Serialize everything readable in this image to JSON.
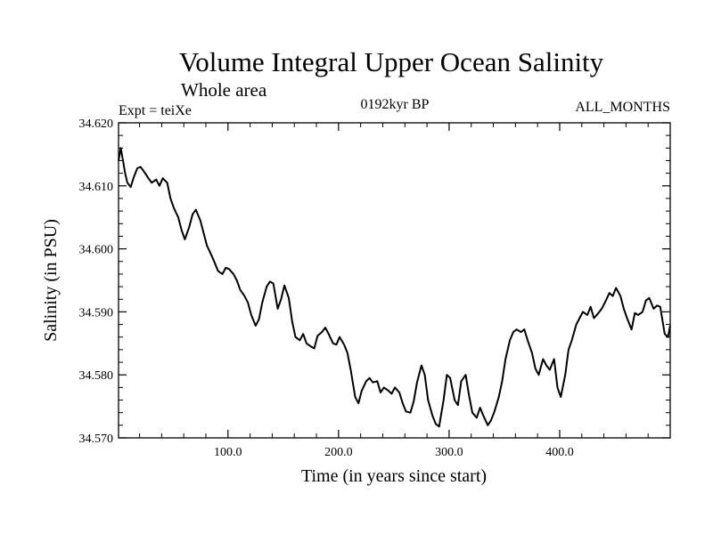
{
  "chart_data": {
    "type": "line",
    "title": "Volume Integral Upper Ocean Salinity",
    "subtitle": "Whole area",
    "annotations": {
      "left": "Expt = teiXe",
      "center": "0192kyr BP",
      "right": "ALL_MONTHS"
    },
    "xlabel": "Time (in years since start)",
    "ylabel": "Salinity (in PSU)",
    "xlim": [
      1,
      500
    ],
    "ylim": [
      34.57,
      34.62
    ],
    "x_ticks": [
      100,
      200,
      300,
      400
    ],
    "x_tick_labels": [
      "100.0",
      "200.0",
      "300.0",
      "400.0"
    ],
    "y_ticks": [
      34.57,
      34.58,
      34.59,
      34.6,
      34.61,
      34.62
    ],
    "y_tick_labels": [
      "34.570",
      "34.580",
      "34.590",
      "34.600",
      "34.610",
      "34.620"
    ],
    "grid": false,
    "legend": "none",
    "series_color": "#000000",
    "series": [
      {
        "x": [
          1,
          3,
          5,
          7,
          9,
          12,
          15,
          18,
          21,
          25,
          28,
          31,
          35,
          38,
          41,
          45,
          48,
          51,
          55,
          58,
          61,
          65,
          68,
          71,
          75,
          78,
          81,
          85,
          88,
          91,
          95,
          98,
          101,
          105,
          108,
          111,
          115,
          118,
          121,
          125,
          128,
          131,
          135,
          138,
          141,
          145,
          148,
          151,
          155,
          158,
          161,
          165,
          168,
          171,
          175,
          178,
          181,
          185,
          188,
          191,
          195,
          198,
          201,
          205,
          208,
          211,
          215,
          218,
          221,
          225,
          228,
          231,
          235,
          238,
          241,
          245,
          248,
          251,
          255,
          258,
          261,
          265,
          268,
          271,
          275,
          278,
          281,
          285,
          288,
          291,
          295,
          298,
          301,
          305,
          308,
          311,
          315,
          318,
          321,
          325,
          328,
          331,
          335,
          338,
          341,
          345,
          348,
          351,
          355,
          358,
          361,
          365,
          368,
          371,
          375,
          378,
          381,
          385,
          388,
          391,
          395,
          398,
          401,
          405,
          408,
          411,
          415,
          418,
          421,
          425,
          428,
          431,
          435,
          438,
          441,
          445,
          448,
          451,
          455,
          458,
          461,
          465,
          468,
          471,
          475,
          478,
          481,
          485,
          488,
          491,
          495,
          498,
          500
        ],
        "y": [
          34.614,
          34.616,
          34.614,
          34.612,
          34.6105,
          34.6098,
          34.6115,
          34.6128,
          34.613,
          34.612,
          34.6112,
          34.6105,
          34.611,
          34.61,
          34.6112,
          34.6105,
          34.608,
          34.6065,
          34.605,
          34.603,
          34.6015,
          34.6035,
          34.6055,
          34.6062,
          34.6045,
          34.6025,
          34.6005,
          34.599,
          34.5978,
          34.5965,
          34.596,
          34.597,
          34.5968,
          34.596,
          34.595,
          34.5935,
          34.5925,
          34.5915,
          34.5895,
          34.5878,
          34.5888,
          34.5915,
          34.594,
          34.5948,
          34.5945,
          34.5905,
          34.592,
          34.5942,
          34.5922,
          34.5885,
          34.586,
          34.5855,
          34.5865,
          34.585,
          34.5845,
          34.5842,
          34.5862,
          34.5868,
          34.5875,
          34.5865,
          34.585,
          34.5848,
          34.586,
          34.5848,
          34.5835,
          34.5808,
          34.5765,
          34.5755,
          34.5775,
          34.579,
          34.5795,
          34.5788,
          34.579,
          34.5772,
          34.578,
          34.5775,
          34.577,
          34.578,
          34.5772,
          34.5755,
          34.5742,
          34.574,
          34.5758,
          34.5788,
          34.5815,
          34.58,
          34.576,
          34.5735,
          34.5722,
          34.5718,
          34.576,
          34.58,
          34.5795,
          34.576,
          34.5752,
          34.579,
          34.58,
          34.5768,
          34.574,
          34.5732,
          34.5748,
          34.5735,
          34.572,
          34.5728,
          34.5742,
          34.5765,
          34.579,
          34.5825,
          34.5855,
          34.5868,
          34.5872,
          34.5868,
          34.5872,
          34.5855,
          34.5835,
          34.581,
          34.58,
          34.5825,
          34.5815,
          34.5808,
          34.5825,
          34.578,
          34.5765,
          34.58,
          34.584,
          34.5855,
          34.588,
          34.589,
          34.59,
          34.5895,
          34.5908,
          34.589,
          34.5898,
          34.5905,
          34.5915,
          34.593,
          34.5925,
          34.5938,
          34.5925,
          34.5905,
          34.589,
          34.5872,
          34.5898,
          34.5895,
          34.59,
          34.5918,
          34.5922,
          34.5905,
          34.591,
          34.5908,
          34.5865,
          34.586,
          34.5878
        ]
      }
    ]
  }
}
